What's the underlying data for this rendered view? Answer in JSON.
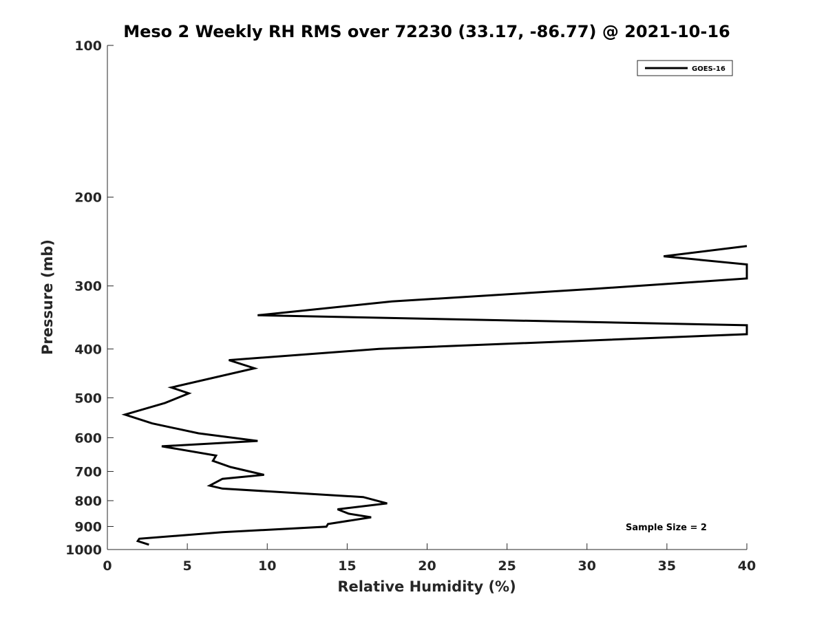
{
  "chart_data": {
    "type": "line",
    "title": "Meso 2 Weekly RH RMS over 72230 (33.17, -86.77) @ 2021-10-16",
    "xlabel": "Relative Humidity (%)",
    "ylabel": "Pressure (mb)",
    "xlim": [
      0,
      40
    ],
    "ylim": [
      100,
      1000
    ],
    "yscale": "log",
    "y_reversed": true,
    "grid": false,
    "xticks": [
      0,
      5,
      10,
      15,
      20,
      25,
      30,
      35,
      40
    ],
    "yticks": [
      100,
      200,
      300,
      400,
      500,
      600,
      700,
      800,
      900,
      1000
    ],
    "legend_position": "top-right",
    "annotation": "Sample Size = 2",
    "series": [
      {
        "name": "GOES-16",
        "color": "#000000",
        "points": [
          [
            40,
            250
          ],
          [
            34.8,
            262
          ],
          [
            40,
            272
          ],
          [
            40,
            290
          ],
          [
            30.5,
            304
          ],
          [
            17.8,
            322
          ],
          [
            9.4,
            343
          ],
          [
            40,
            359
          ],
          [
            40,
            374
          ],
          [
            17.0,
            400
          ],
          [
            7.6,
            421
          ],
          [
            9.2,
            437
          ],
          [
            4.0,
            477
          ],
          [
            5.1,
            490
          ],
          [
            3.6,
            512
          ],
          [
            1.1,
            540
          ],
          [
            2.8,
            562
          ],
          [
            5.7,
            588
          ],
          [
            9.4,
            609
          ],
          [
            3.4,
            624
          ],
          [
            6.8,
            651
          ],
          [
            6.6,
            667
          ],
          [
            7.7,
            686
          ],
          [
            9.8,
            711
          ],
          [
            7.2,
            724
          ],
          [
            6.4,
            747
          ],
          [
            7.2,
            757
          ],
          [
            16.0,
            787
          ],
          [
            17.5,
            810
          ],
          [
            14.4,
            832
          ],
          [
            15.1,
            849
          ],
          [
            16.5,
            863
          ],
          [
            13.8,
            890
          ],
          [
            13.7,
            901
          ],
          [
            7.2,
            924
          ],
          [
            2.0,
            952
          ],
          [
            1.9,
            962
          ],
          [
            2.6,
            978
          ]
        ]
      }
    ]
  }
}
